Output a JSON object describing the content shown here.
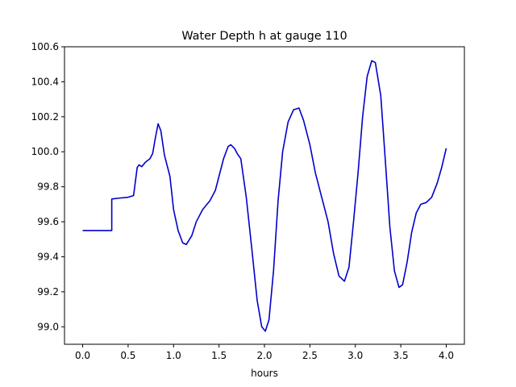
{
  "chart_data": {
    "type": "line",
    "title": "Water Depth h at gauge 110",
    "xlabel": "hours",
    "ylabel": "",
    "xlim": [
      -0.2,
      4.2
    ],
    "ylim": [
      98.9,
      100.6
    ],
    "x_ticks": [
      0.0,
      0.5,
      1.0,
      1.5,
      2.0,
      2.5,
      3.0,
      3.5,
      4.0
    ],
    "x_tick_labels": [
      "0.0",
      "0.5",
      "1.0",
      "1.5",
      "2.0",
      "2.5",
      "3.0",
      "3.5",
      "4.0"
    ],
    "y_ticks": [
      99.0,
      99.2,
      99.4,
      99.6,
      99.8,
      100.0,
      100.2,
      100.4,
      100.6
    ],
    "y_tick_labels": [
      "99.0",
      "99.2",
      "99.4",
      "99.6",
      "99.8",
      "100.0",
      "100.2",
      "100.4",
      "100.6"
    ],
    "grid": false,
    "legend": "none",
    "series": [
      {
        "color": "#0000cc",
        "points": [
          [
            0.0,
            99.55
          ],
          [
            0.32,
            99.55
          ],
          [
            0.32,
            99.73
          ],
          [
            0.4,
            99.735
          ],
          [
            0.5,
            99.74
          ],
          [
            0.56,
            99.75
          ],
          [
            0.6,
            99.91
          ],
          [
            0.62,
            99.925
          ],
          [
            0.65,
            99.915
          ],
          [
            0.69,
            99.94
          ],
          [
            0.74,
            99.96
          ],
          [
            0.77,
            99.99
          ],
          [
            0.8,
            100.08
          ],
          [
            0.83,
            100.16
          ],
          [
            0.86,
            100.12
          ],
          [
            0.9,
            99.98
          ],
          [
            0.96,
            99.86
          ],
          [
            1.0,
            99.67
          ],
          [
            1.05,
            99.55
          ],
          [
            1.1,
            99.48
          ],
          [
            1.14,
            99.47
          ],
          [
            1.2,
            99.52
          ],
          [
            1.25,
            99.6
          ],
          [
            1.32,
            99.67
          ],
          [
            1.4,
            99.72
          ],
          [
            1.46,
            99.78
          ],
          [
            1.5,
            99.86
          ],
          [
            1.55,
            99.96
          ],
          [
            1.6,
            100.03
          ],
          [
            1.63,
            100.04
          ],
          [
            1.67,
            100.02
          ],
          [
            1.7,
            99.99
          ],
          [
            1.74,
            99.96
          ],
          [
            1.8,
            99.74
          ],
          [
            1.86,
            99.45
          ],
          [
            1.92,
            99.15
          ],
          [
            1.97,
            99.0
          ],
          [
            2.01,
            98.975
          ],
          [
            2.05,
            99.04
          ],
          [
            2.1,
            99.32
          ],
          [
            2.15,
            99.72
          ],
          [
            2.2,
            100.0
          ],
          [
            2.26,
            100.17
          ],
          [
            2.32,
            100.24
          ],
          [
            2.38,
            100.25
          ],
          [
            2.43,
            100.18
          ],
          [
            2.5,
            100.04
          ],
          [
            2.56,
            99.88
          ],
          [
            2.63,
            99.74
          ],
          [
            2.7,
            99.6
          ],
          [
            2.76,
            99.42
          ],
          [
            2.82,
            99.29
          ],
          [
            2.88,
            99.26
          ],
          [
            2.93,
            99.34
          ],
          [
            2.98,
            99.6
          ],
          [
            3.03,
            99.88
          ],
          [
            3.08,
            100.2
          ],
          [
            3.13,
            100.43
          ],
          [
            3.18,
            100.52
          ],
          [
            3.22,
            100.51
          ],
          [
            3.28,
            100.32
          ],
          [
            3.33,
            99.95
          ],
          [
            3.38,
            99.57
          ],
          [
            3.43,
            99.32
          ],
          [
            3.48,
            99.225
          ],
          [
            3.52,
            99.24
          ],
          [
            3.57,
            99.37
          ],
          [
            3.62,
            99.54
          ],
          [
            3.67,
            99.65
          ],
          [
            3.72,
            99.7
          ],
          [
            3.78,
            99.71
          ],
          [
            3.84,
            99.74
          ],
          [
            3.9,
            99.82
          ],
          [
            3.95,
            99.91
          ],
          [
            4.0,
            100.02
          ]
        ]
      }
    ]
  }
}
